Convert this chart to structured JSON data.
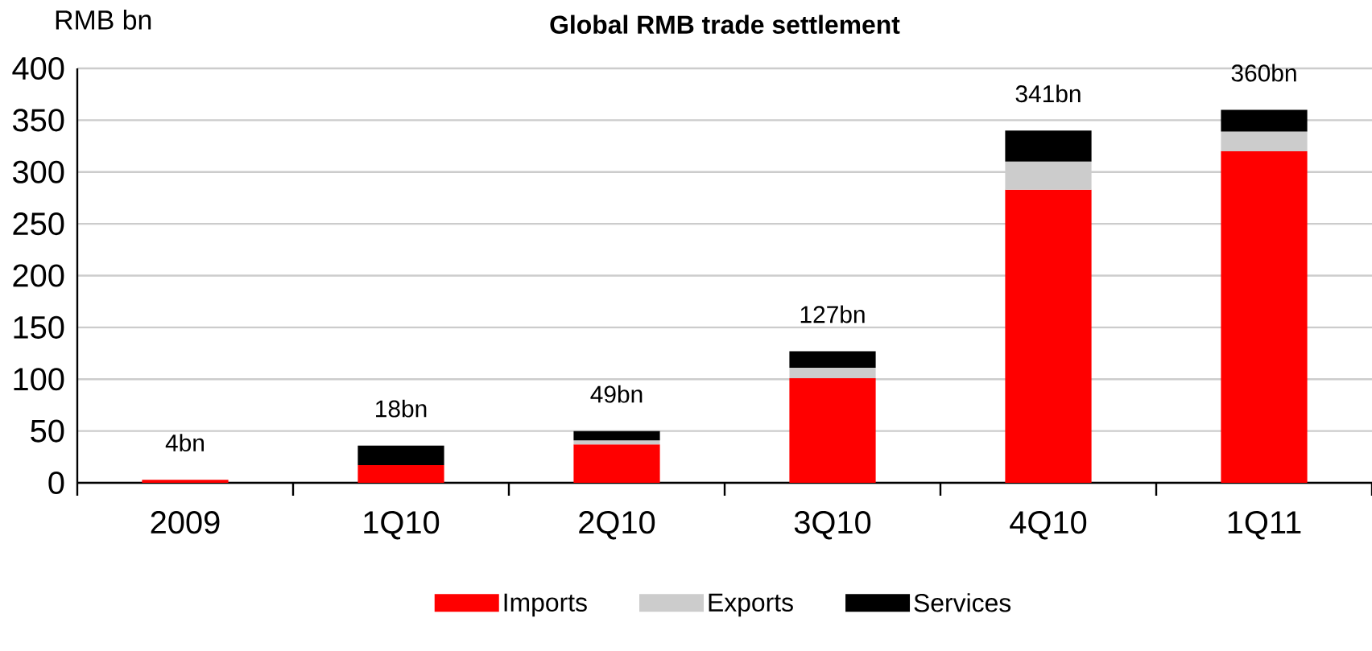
{
  "chart_data": {
    "type": "bar",
    "stacked": true,
    "title": "Global RMB trade settlement",
    "ylabel": "RMB bn",
    "categories": [
      "2009",
      "1Q10",
      "2Q10",
      "3Q10",
      "4Q10",
      "1Q11"
    ],
    "series": [
      {
        "name": "Imports",
        "color": "#ff0000",
        "values": [
          3,
          17,
          37,
          101,
          283,
          320
        ]
      },
      {
        "name": "Exports",
        "color": "#cccccc",
        "values": [
          null,
          null,
          4,
          10,
          27,
          19
        ]
      },
      {
        "name": "Services",
        "color": "#000000",
        "values": [
          null,
          19,
          9,
          16,
          30,
          21
        ]
      }
    ],
    "totals": [
      "4bn",
      null,
      "49bn",
      "127bn",
      "341bn",
      "360bn"
    ],
    "annotations": [
      {
        "text": "18bn",
        "x": "1Q10",
        "y": 36
      }
    ],
    "ylim": [
      0,
      400
    ],
    "yticks": [
      0,
      50,
      100,
      150,
      200,
      250,
      300,
      350,
      400
    ],
    "grid": "y",
    "legend": "bottom"
  }
}
